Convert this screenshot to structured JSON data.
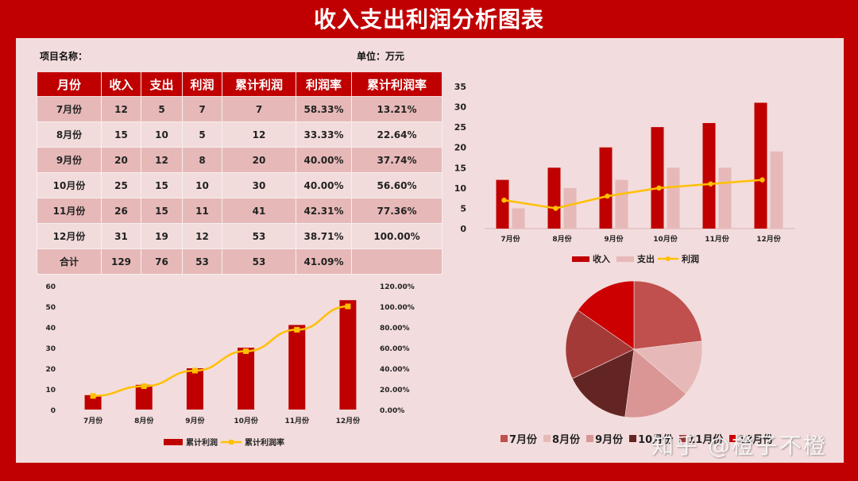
{
  "title": "收入支出利润分析图表",
  "meta": {
    "project_label": "项目名称：",
    "unit_label": "单位：万元"
  },
  "colors": {
    "brand_red": "#c00000",
    "panel_bg": "#f3dcdd",
    "expense_pink": "#e6b9b8",
    "line_gold": "#ffc000"
  },
  "table": {
    "headers": [
      "月份",
      "收入",
      "支出",
      "利润",
      "累计利润",
      "利润率",
      "累计利润率"
    ],
    "rows": [
      [
        "7月份",
        "12",
        "5",
        "7",
        "7",
        "58.33%",
        "13.21%"
      ],
      [
        "8月份",
        "15",
        "10",
        "5",
        "12",
        "33.33%",
        "22.64%"
      ],
      [
        "9月份",
        "20",
        "12",
        "8",
        "20",
        "40.00%",
        "37.74%"
      ],
      [
        "10月份",
        "25",
        "15",
        "10",
        "30",
        "40.00%",
        "56.60%"
      ],
      [
        "11月份",
        "26",
        "15",
        "11",
        "41",
        "42.31%",
        "77.36%"
      ],
      [
        "12月份",
        "31",
        "19",
        "12",
        "53",
        "38.71%",
        "100.00%"
      ],
      [
        "合计",
        "129",
        "76",
        "53",
        "53",
        "41.09%",
        ""
      ]
    ]
  },
  "chart_data": [
    {
      "type": "bar",
      "title": "",
      "categories": [
        "7月份",
        "8月份",
        "9月份",
        "10月份",
        "11月份",
        "12月份"
      ],
      "series": [
        {
          "name": "收入",
          "kind": "bar",
          "color": "#c00000",
          "values": [
            12,
            15,
            20,
            25,
            26,
            31
          ]
        },
        {
          "name": "支出",
          "kind": "bar",
          "color": "#e6b9b8",
          "values": [
            5,
            10,
            12,
            15,
            15,
            19
          ]
        },
        {
          "name": "利润",
          "kind": "line",
          "color": "#ffc000",
          "values": [
            7,
            5,
            8,
            10,
            11,
            12
          ]
        }
      ],
      "yticks": [
        "0",
        "5",
        "10",
        "15",
        "20",
        "25",
        "30",
        "35"
      ],
      "ylim": [
        0,
        35
      ],
      "legend_position": "bottom",
      "grid": false
    },
    {
      "type": "bar",
      "title": "",
      "categories": [
        "7月份",
        "8月份",
        "9月份",
        "10月份",
        "11月份",
        "12月份"
      ],
      "series": [
        {
          "name": "累计利润",
          "kind": "bar",
          "axis": "left",
          "color": "#c00000",
          "values": [
            7,
            12,
            20,
            30,
            41,
            53
          ]
        },
        {
          "name": "累计利润率",
          "kind": "line",
          "axis": "right",
          "color": "#ffc000",
          "values": [
            13.21,
            22.64,
            37.74,
            56.6,
            77.36,
            100.0
          ]
        }
      ],
      "yticks_left": [
        "0",
        "10",
        "20",
        "30",
        "40",
        "50",
        "60"
      ],
      "yticks_right": [
        "0.00%",
        "20.00%",
        "40.00%",
        "60.00%",
        "80.00%",
        "100.00%",
        "120.00%"
      ],
      "ylim_left": [
        0,
        60
      ],
      "ylim_right": [
        0,
        120
      ],
      "legend_position": "bottom",
      "grid": false
    },
    {
      "type": "pie",
      "title": "",
      "categories": [
        "7月份",
        "8月份",
        "9月份",
        "10月份",
        "11月份",
        "12月份"
      ],
      "values": [
        58.33,
        33.33,
        40.0,
        40.0,
        42.31,
        38.71
      ],
      "colors": [
        "#c0504d",
        "#e6b9b8",
        "#d99694",
        "#632523",
        "#a33a37",
        "#cc0000"
      ],
      "legend_position": "bottom"
    }
  ],
  "watermark": "知乎 @橙子不橙"
}
